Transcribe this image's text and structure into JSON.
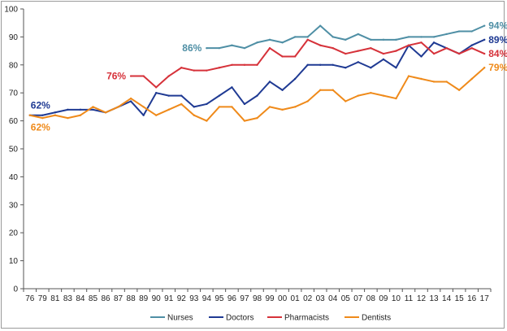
{
  "chart_data": {
    "type": "line",
    "title": "",
    "xlabel": "",
    "ylabel": "",
    "ylim": [
      0,
      100
    ],
    "yticks": [
      0,
      10,
      20,
      30,
      40,
      50,
      60,
      70,
      80,
      90,
      100
    ],
    "grid": false,
    "legend_position": "bottom",
    "categories": [
      "76",
      "79",
      "81",
      "83",
      "84",
      "85",
      "86",
      "87",
      "88",
      "89",
      "90",
      "91",
      "92",
      "93",
      "94",
      "95",
      "96",
      "97",
      "98",
      "99",
      "00",
      "01",
      "02",
      "03",
      "04",
      "05",
      "07",
      "08",
      "09",
      "10",
      "11",
      "12",
      "13",
      "14",
      "15",
      "16",
      "17"
    ],
    "series": [
      {
        "name": "Nurses",
        "color": "#4f8fa5",
        "values": [
          null,
          null,
          null,
          null,
          null,
          null,
          null,
          null,
          null,
          null,
          null,
          null,
          null,
          null,
          86,
          86,
          87,
          86,
          88,
          89,
          88,
          90,
          90,
          94,
          90,
          89,
          91,
          89,
          89,
          89,
          90,
          90,
          90,
          91,
          92,
          92,
          94
        ],
        "labels": [
          {
            "index": 14,
            "text": "86%",
            "side": "left"
          },
          {
            "index": 36,
            "text": "94%",
            "side": "right"
          }
        ]
      },
      {
        "name": "Doctors",
        "color": "#1f3a93",
        "values": [
          62,
          62,
          63,
          64,
          64,
          64,
          63,
          65,
          67,
          62,
          70,
          69,
          69,
          65,
          66,
          69,
          72,
          66,
          69,
          74,
          71,
          75,
          80,
          80,
          80,
          79,
          81,
          79,
          82,
          79,
          87,
          83,
          88,
          86,
          84,
          87,
          89
        ],
        "labels": [
          {
            "index": 0,
            "text": "62%",
            "side": "above"
          },
          {
            "index": 36,
            "text": "89%",
            "side": "right"
          }
        ]
      },
      {
        "name": "Pharmacists",
        "color": "#d6323a",
        "values": [
          null,
          null,
          null,
          null,
          null,
          null,
          null,
          null,
          76,
          76,
          72,
          76,
          79,
          78,
          78,
          79,
          80,
          80,
          80,
          86,
          83,
          83,
          89,
          87,
          86,
          84,
          85,
          86,
          84,
          85,
          87,
          88,
          84,
          86,
          84,
          86,
          84
        ],
        "labels": [
          {
            "index": 8,
            "text": "76%",
            "side": "left"
          },
          {
            "index": 36,
            "text": "84%",
            "side": "right"
          }
        ]
      },
      {
        "name": "Dentists",
        "color": "#ef8a1a",
        "values": [
          62,
          61,
          62,
          61,
          62,
          65,
          63,
          65,
          68,
          65,
          62,
          64,
          66,
          62,
          60,
          65,
          65,
          60,
          61,
          65,
          64,
          65,
          67,
          71,
          71,
          67,
          69,
          70,
          69,
          68,
          76,
          75,
          74,
          74,
          71,
          75,
          79
        ],
        "labels": [
          {
            "index": 0,
            "text": "62%",
            "side": "below"
          },
          {
            "index": 36,
            "text": "79%",
            "side": "right"
          }
        ]
      }
    ]
  }
}
